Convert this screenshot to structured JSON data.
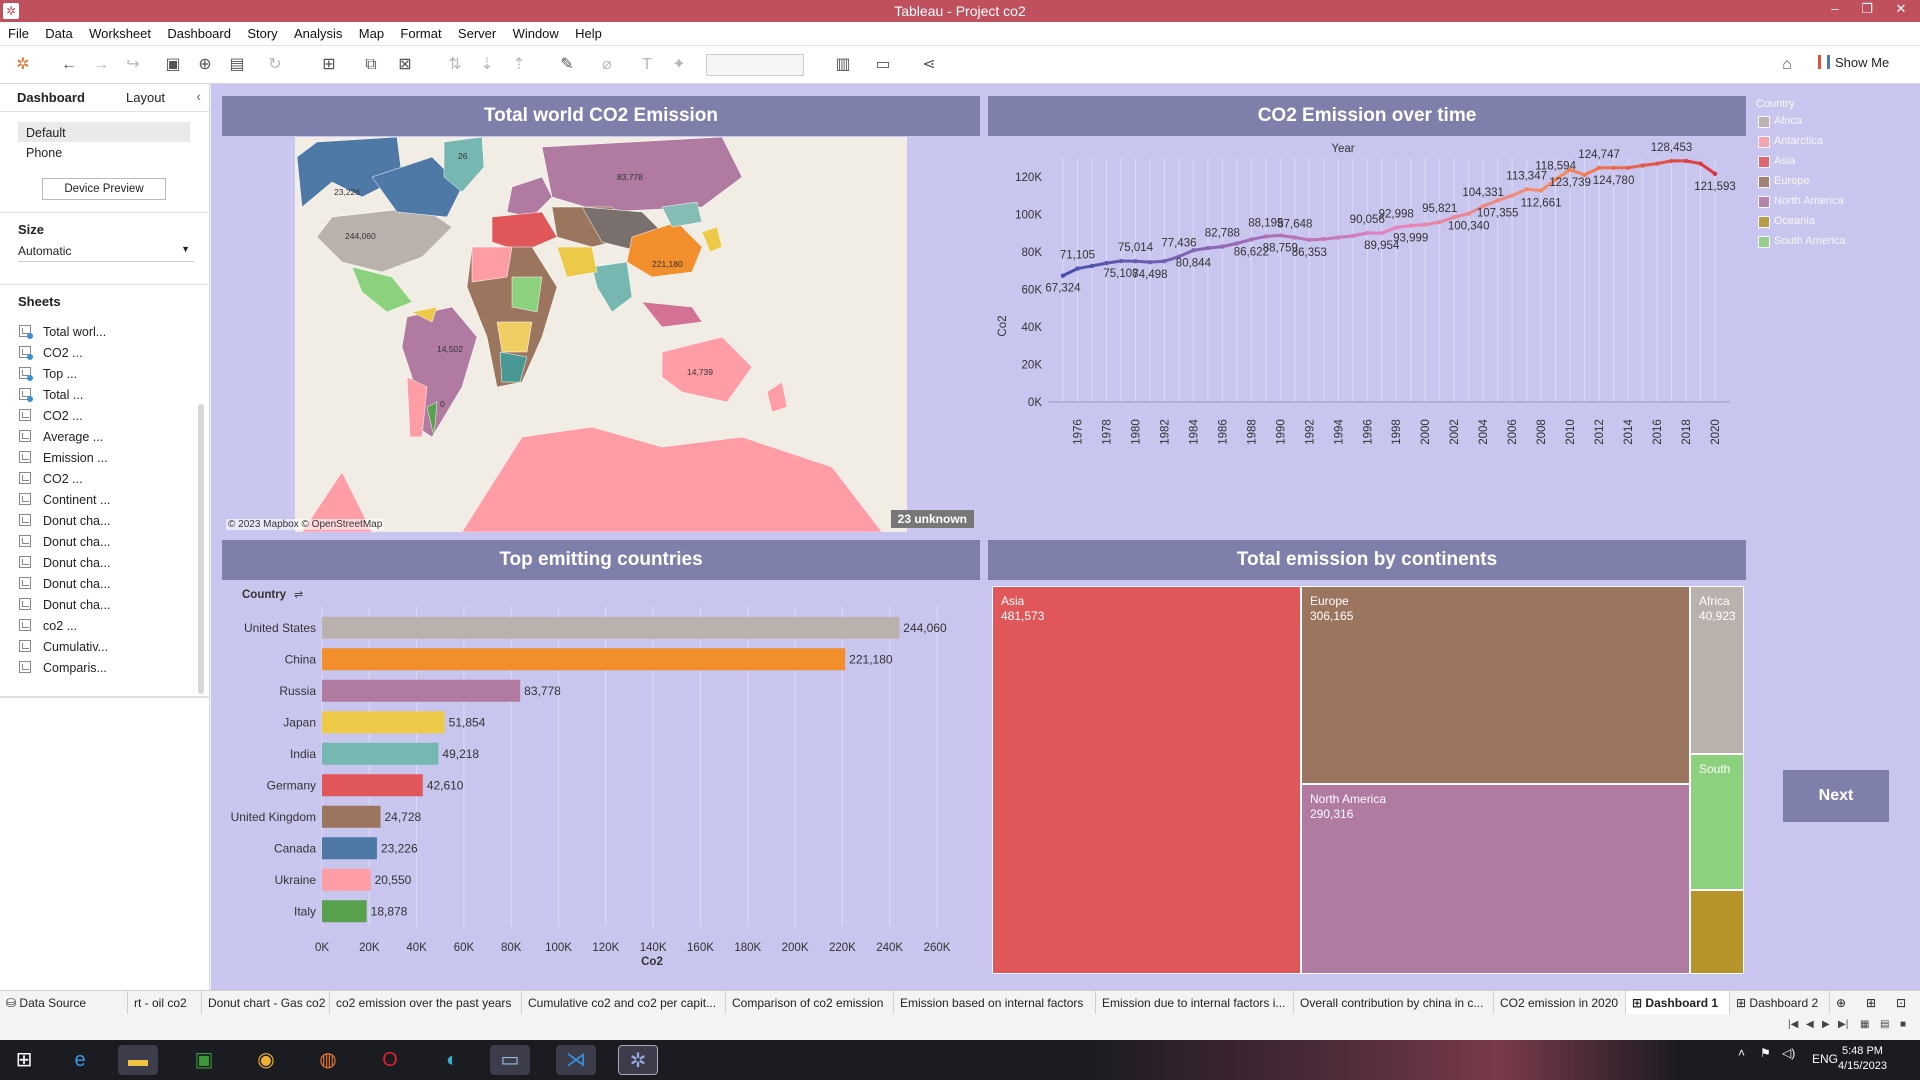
{
  "window": {
    "title": "Tableau - Project co2"
  },
  "menu": [
    "File",
    "Data",
    "Worksheet",
    "Dashboard",
    "Story",
    "Analysis",
    "Map",
    "Format",
    "Server",
    "Window",
    "Help"
  ],
  "toolbar": {
    "show_me": "Show Me"
  },
  "left_pane": {
    "tab_dashboard": "Dashboard",
    "tab_layout": "Layout",
    "devices": [
      "Default",
      "Phone"
    ],
    "device_preview": "Device Preview",
    "size_label": "Size",
    "size_value": "Automatic",
    "sheets_label": "Sheets",
    "sheets": [
      {
        "name": "Total worl...",
        "used": true
      },
      {
        "name": "CO2 ...",
        "used": true
      },
      {
        "name": "Top ...",
        "used": true
      },
      {
        "name": "Total ...",
        "used": true
      },
      {
        "name": "CO2 ...",
        "used": false
      },
      {
        "name": "Average ...",
        "used": false
      },
      {
        "name": "Emission ...",
        "used": false
      },
      {
        "name": "CO2 ...",
        "used": false
      },
      {
        "name": "Continent ...",
        "used": false
      },
      {
        "name": "Donut cha...",
        "used": false
      },
      {
        "name": "Donut cha...",
        "used": false
      },
      {
        "name": "Donut cha...",
        "used": false
      },
      {
        "name": "Donut cha...",
        "used": false
      },
      {
        "name": "Donut cha...",
        "used": false
      },
      {
        "name": "co2 ...",
        "used": false
      },
      {
        "name": "Cumulativ...",
        "used": false
      },
      {
        "name": "Comparis...",
        "used": false
      }
    ]
  },
  "dashboard": {
    "map": {
      "title": "Total world CO2 Emission",
      "attribution": "© 2023 Mapbox © OpenStreetMap",
      "unknown": "23 unknown",
      "labels": [
        "23,226",
        "244,060",
        "14,502",
        "83,778",
        "221,180",
        "14,739",
        "26",
        "0"
      ]
    },
    "next_button": "Next"
  },
  "legend": {
    "title": "Country",
    "items": [
      {
        "name": "Africa",
        "color": "#bab0ac"
      },
      {
        "name": "Antarctica",
        "color": "#ff9da7"
      },
      {
        "name": "Asia",
        "color": "#e15759"
      },
      {
        "name": "Europe",
        "color": "#9c755f"
      },
      {
        "name": "North America",
        "color": "#b07aa1"
      },
      {
        "name": "Oceania",
        "color": "#b5952a"
      },
      {
        "name": "South America",
        "color": "#8cd17d"
      }
    ]
  },
  "chart_data": [
    {
      "type": "line",
      "title": "CO2 Emission over time",
      "xlabel": "Year",
      "ylabel": "Co2",
      "x": [
        1975,
        1976,
        1977,
        1978,
        1979,
        1980,
        1981,
        1982,
        1983,
        1984,
        1985,
        1986,
        1987,
        1988,
        1989,
        1990,
        1991,
        1992,
        1993,
        1994,
        1995,
        1996,
        1997,
        1998,
        1999,
        2000,
        2001,
        2002,
        2003,
        2004,
        2005,
        2006,
        2007,
        2008,
        2009,
        2010,
        2011,
        2012,
        2013,
        2014,
        2015,
        2016,
        2017,
        2018,
        2019,
        2020
      ],
      "values": [
        67324,
        71105,
        72500,
        74000,
        75108,
        75014,
        74498,
        75000,
        77436,
        80844,
        82000,
        82788,
        84500,
        86622,
        88195,
        88759,
        87648,
        86353,
        86800,
        87648,
        88500,
        90056,
        89954,
        92998,
        93999,
        94500,
        95821,
        98500,
        100340,
        104331,
        107355,
        110000,
        113347,
        112661,
        118594,
        123739,
        121000,
        124747,
        124780,
        124780,
        126000,
        127000,
        128453,
        128453,
        127000,
        121593
      ],
      "labels": [
        {
          "i": 0,
          "t": "67,324"
        },
        {
          "i": 1,
          "t": "71,105"
        },
        {
          "i": 4,
          "t": "75,108"
        },
        {
          "i": 5,
          "t": "75,014"
        },
        {
          "i": 6,
          "t": "74,498"
        },
        {
          "i": 8,
          "t": "77,436"
        },
        {
          "i": 9,
          "t": "80,844"
        },
        {
          "i": 11,
          "t": "82,788"
        },
        {
          "i": 13,
          "t": "86,622"
        },
        {
          "i": 14,
          "t": "88,195"
        },
        {
          "i": 15,
          "t": "88,759"
        },
        {
          "i": 16,
          "t": "87,648"
        },
        {
          "i": 17,
          "t": "86,353"
        },
        {
          "i": 21,
          "t": "90,056"
        },
        {
          "i": 22,
          "t": "89,954"
        },
        {
          "i": 23,
          "t": "92,998"
        },
        {
          "i": 24,
          "t": "93,999"
        },
        {
          "i": 26,
          "t": "95,821"
        },
        {
          "i": 28,
          "t": "100,340"
        },
        {
          "i": 29,
          "t": "104,331"
        },
        {
          "i": 30,
          "t": "107,355"
        },
        {
          "i": 32,
          "t": "113,347"
        },
        {
          "i": 33,
          "t": "112,661"
        },
        {
          "i": 34,
          "t": "118,594"
        },
        {
          "i": 35,
          "t": "123,739"
        },
        {
          "i": 37,
          "t": "124,747"
        },
        {
          "i": 38,
          "t": "124,780"
        },
        {
          "i": 42,
          "t": "128,453"
        },
        {
          "i": 45,
          "t": "121,593"
        }
      ],
      "xticks": [
        "1976",
        "1978",
        "1980",
        "1982",
        "1984",
        "1986",
        "1988",
        "1990",
        "1992",
        "1994",
        "1996",
        "1998",
        "2000",
        "2002",
        "2004",
        "2006",
        "2008",
        "2010",
        "2012",
        "2014",
        "2016",
        "2018",
        "2020"
      ],
      "yticks": [
        "0K",
        "20K",
        "40K",
        "60K",
        "80K",
        "100K",
        "120K"
      ],
      "ylim": [
        0,
        130000
      ]
    },
    {
      "type": "bar",
      "title": "Top emitting countries",
      "xlabel": "Co2",
      "ylabel": "Country",
      "categories": [
        "United States",
        "China",
        "Russia",
        "Japan",
        "India",
        "Germany",
        "United Kingdom",
        "Canada",
        "Ukraine",
        "Italy"
      ],
      "values": [
        244060,
        221180,
        83778,
        51854,
        49218,
        42610,
        24728,
        23226,
        20550,
        18878
      ],
      "value_labels": [
        "244,060",
        "221,180",
        "83,778",
        "51,854",
        "49,218",
        "42,610",
        "24,728",
        "23,226",
        "20,550",
        "18,878"
      ],
      "colors": [
        "#bab0ac",
        "#f28e2b",
        "#b07aa1",
        "#edc948",
        "#76b7b2",
        "#e15759",
        "#9c755f",
        "#4e79a7",
        "#ff9da7",
        "#59a14f"
      ],
      "xticks": [
        "0K",
        "20K",
        "40K",
        "60K",
        "80K",
        "100K",
        "120K",
        "140K",
        "160K",
        "180K",
        "200K",
        "220K",
        "240K",
        "260K"
      ],
      "xlim": [
        0,
        260000
      ]
    },
    {
      "type": "treemap",
      "title": "Total emission by continents",
      "items": [
        {
          "name": "Asia",
          "value": 481573,
          "label": "481,573",
          "color": "#e15759"
        },
        {
          "name": "Europe",
          "value": 306165,
          "label": "306,165",
          "color": "#9c755f"
        },
        {
          "name": "North America",
          "value": 290316,
          "label": "290,316",
          "color": "#b07aa1"
        },
        {
          "name": "Africa",
          "value": 40923,
          "label": "40,923",
          "color": "#bab0ac"
        },
        {
          "name": "South",
          "value": null,
          "label": "",
          "color": "#8cd17d"
        },
        {
          "name": "",
          "value": null,
          "label": "",
          "color": "#b5952a"
        }
      ]
    }
  ],
  "status_tabs": [
    "Data Source",
    "rt - oil co2",
    "Donut chart - Gas co2",
    "co2 emission over the past years",
    "Cumulative co2 and co2 per capit...",
    "Comparison of co2 emission",
    "Emission based on internal factors",
    "Emission due to internal factors i...",
    "Overall contribution by china in c...",
    "CO2 emission in 2020",
    "Dashboard 1",
    "Dashboard 2"
  ],
  "taskbar": {
    "lang": "ENG",
    "time": "5:48 PM",
    "date": "4/15/2023"
  }
}
